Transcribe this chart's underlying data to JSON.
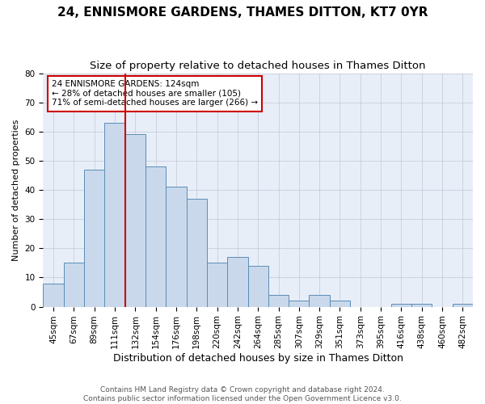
{
  "title": "24, ENNISMORE GARDENS, THAMES DITTON, KT7 0YR",
  "subtitle": "Size of property relative to detached houses in Thames Ditton",
  "xlabel": "Distribution of detached houses by size in Thames Ditton",
  "ylabel": "Number of detached properties",
  "categories": [
    "45sqm",
    "67sqm",
    "89sqm",
    "111sqm",
    "132sqm",
    "154sqm",
    "176sqm",
    "198sqm",
    "220sqm",
    "242sqm",
    "264sqm",
    "285sqm",
    "307sqm",
    "329sqm",
    "351sqm",
    "373sqm",
    "395sqm",
    "416sqm",
    "438sqm",
    "460sqm",
    "482sqm"
  ],
  "values": [
    8,
    15,
    47,
    63,
    59,
    48,
    41,
    37,
    15,
    17,
    14,
    4,
    2,
    4,
    2,
    0,
    0,
    1,
    1,
    0,
    1
  ],
  "bar_color": "#c9d9eb",
  "bar_edge_color": "#5b8db8",
  "property_line_x": 3.5,
  "red_line_color": "#cc0000",
  "annotation_text": "24 ENNISMORE GARDENS: 124sqm\n← 28% of detached houses are smaller (105)\n71% of semi-detached houses are larger (266) →",
  "annotation_box_color": "#ffffff",
  "annotation_box_edge": "#cc0000",
  "ylim": [
    0,
    80
  ],
  "yticks": [
    0,
    10,
    20,
    30,
    40,
    50,
    60,
    70,
    80
  ],
  "grid_color": "#c0c8d8",
  "background_color": "#e8eef8",
  "footer_line1": "Contains HM Land Registry data © Crown copyright and database right 2024.",
  "footer_line2": "Contains public sector information licensed under the Open Government Licence v3.0.",
  "title_fontsize": 11,
  "subtitle_fontsize": 9.5,
  "xlabel_fontsize": 9,
  "ylabel_fontsize": 8,
  "tick_fontsize": 7.5,
  "footer_fontsize": 6.5
}
